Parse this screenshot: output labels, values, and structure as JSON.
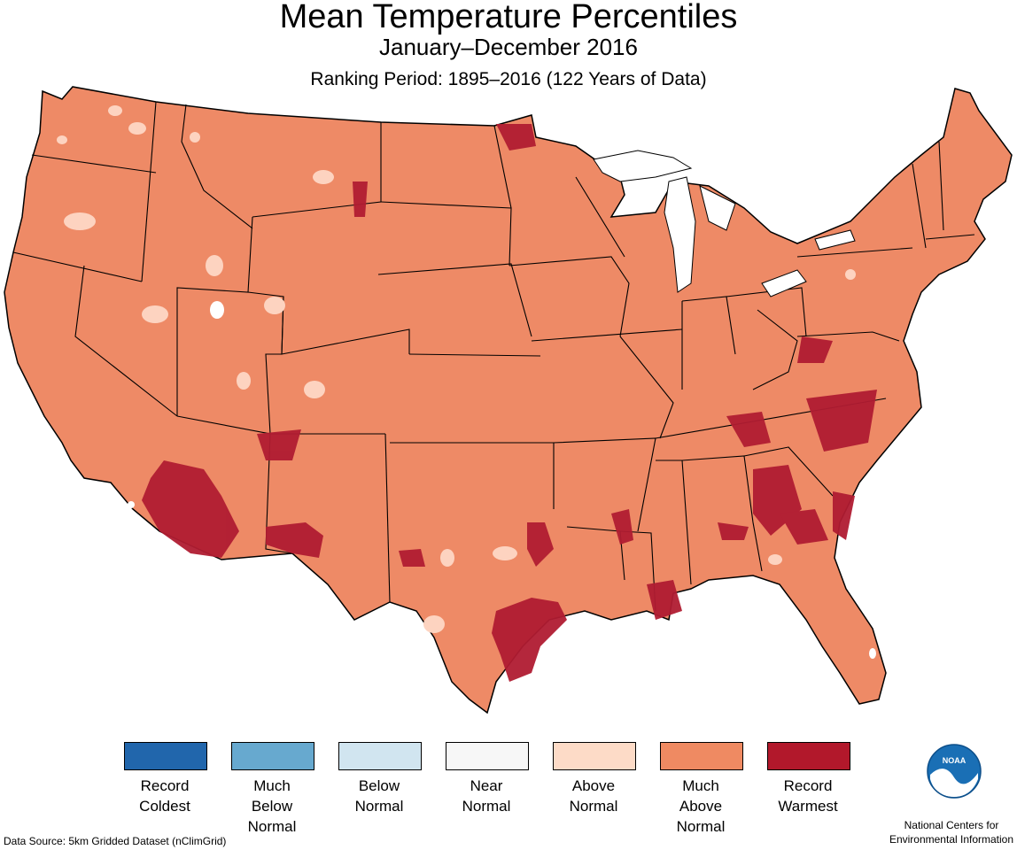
{
  "header": {
    "title": "Mean Temperature Percentiles",
    "subtitle": "January–December 2016",
    "period": "Ranking Period: 1895–2016 (122 Years of Data)"
  },
  "map": {
    "fill_color": "#ee8a66",
    "border_color": "#000000",
    "record_color": "#b01c32",
    "above_color": "#fdd3c0",
    "near_color": "#f7f7f7"
  },
  "legend": [
    {
      "label": "Record\nColdest",
      "color": "#2166ac"
    },
    {
      "label": "Much\nBelow\nNormal",
      "color": "#67a9cf"
    },
    {
      "label": "Below\nNormal",
      "color": "#d1e5f0"
    },
    {
      "label": "Near\nNormal",
      "color": "#f7f7f7"
    },
    {
      "label": "Above\nNormal",
      "color": "#fddbc7"
    },
    {
      "label": "Much\nAbove\nNormal",
      "color": "#ef8a62"
    },
    {
      "label": "Record\nWarmest",
      "color": "#b2182b"
    }
  ],
  "footer": {
    "source": "Data Source: 5km Gridded Dataset (nClimGrid)",
    "logo_name": "noaa-logo",
    "logo_text": "NOAA",
    "agency": "National Centers for\nEnvironmental Information"
  }
}
